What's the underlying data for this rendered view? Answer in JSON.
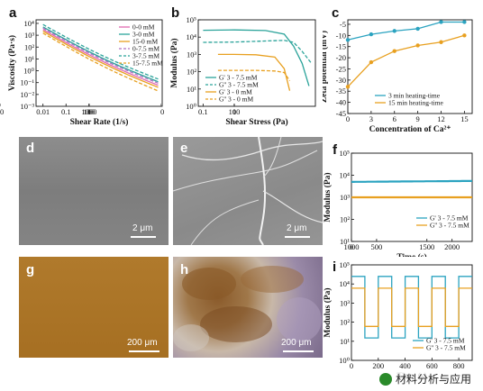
{
  "panels": {
    "a": {
      "label": "a"
    },
    "b": {
      "label": "b"
    },
    "c": {
      "label": "c"
    },
    "d": {
      "label": "d",
      "scale": "2 μm"
    },
    "e": {
      "label": "e",
      "scale": "2 μm"
    },
    "f": {
      "label": "f"
    },
    "g": {
      "label": "g",
      "scale": "200 μm"
    },
    "h": {
      "label": "h",
      "scale": "200 μm"
    },
    "i": {
      "label": "i"
    }
  },
  "watermark": {
    "text": "材料分析与应用",
    "icon": "wechat-icon"
  },
  "chart_data": [
    {
      "id": "a",
      "type": "line",
      "xlabel": "Shear Rate (1/s)",
      "ylabel": "Viscosity (Pa·s)",
      "xscale": "log",
      "yscale": "log",
      "xticks": [
        "0.01",
        "0.1",
        "1",
        "10",
        "100",
        "1000"
      ],
      "yticks": [
        "10⁻³",
        "10⁻²",
        "10⁻¹",
        "10⁰",
        "10¹",
        "10²",
        "10³",
        "10⁴"
      ],
      "xlim": [
        0.005,
        1500
      ],
      "ylim": [
        0.001,
        20000
      ],
      "series": [
        {
          "name": "0-0 mM",
          "color": "#e06ab0",
          "dash": false,
          "x": [
            0.01,
            1000
          ],
          "y": [
            3000,
            0.06
          ]
        },
        {
          "name": "3-0 mM",
          "color": "#2ba39a",
          "dash": false,
          "x": [
            0.01,
            1000
          ],
          "y": [
            5000,
            0.12
          ]
        },
        {
          "name": "15-0 mM",
          "color": "#e8a020",
          "dash": false,
          "x": [
            0.01,
            1000
          ],
          "y": [
            2200,
            0.04
          ]
        },
        {
          "name": "0-7.5 mM",
          "color": "#b070c0",
          "dash": true,
          "x": [
            0.01,
            1000
          ],
          "y": [
            4000,
            0.09
          ]
        },
        {
          "name": "3-7.5 mM",
          "color": "#2ba39a",
          "dash": true,
          "x": [
            0.01,
            1000
          ],
          "y": [
            8000,
            0.2
          ]
        },
        {
          "name": "15-7.5 mM",
          "color": "#e8a020",
          "dash": true,
          "x": [
            0.01,
            1000
          ],
          "y": [
            1500,
            0.02
          ]
        }
      ]
    },
    {
      "id": "b",
      "type": "line",
      "xlabel": "Shear Stress (Pa)",
      "ylabel": "Modulus (Pa)",
      "xscale": "log",
      "yscale": "log",
      "xticks": [
        "0.1",
        "1",
        "10",
        "100"
      ],
      "yticks": [
        "10⁰",
        "10¹",
        "10²",
        "10³",
        "10⁴",
        "10⁵"
      ],
      "xlim": [
        0.07,
        400
      ],
      "ylim": [
        1,
        100000
      ],
      "series": [
        {
          "name": "G' 3 - 7.5 mM",
          "color": "#2ba39a",
          "dash": false,
          "x": [
            0.1,
            1,
            10,
            40,
            80,
            150,
            250
          ],
          "y": [
            25000,
            26000,
            24000,
            15000,
            3000,
            300,
            15
          ]
        },
        {
          "name": "G'' 3 - 7.5 mM",
          "color": "#2ba39a",
          "dash": true,
          "x": [
            0.1,
            1,
            10,
            40,
            80,
            150,
            300
          ],
          "y": [
            5000,
            5200,
            6000,
            6500,
            5000,
            1500,
            300
          ]
        },
        {
          "name": "G' 3 - 0 mM",
          "color": "#e8a020",
          "dash": false,
          "x": [
            0.3,
            1,
            5,
            20,
            40,
            60
          ],
          "y": [
            1000,
            1000,
            950,
            700,
            150,
            8
          ]
        },
        {
          "name": "G'' 3 - 0 mM",
          "color": "#e8a020",
          "dash": true,
          "x": [
            0.3,
            1,
            5,
            20,
            40,
            60
          ],
          "y": [
            120,
            120,
            120,
            110,
            90,
            30
          ]
        }
      ]
    },
    {
      "id": "c",
      "type": "line",
      "xlabel": "Concentration of Ca²⁺",
      "ylabel": "Zeta potential (mV)",
      "xticks": [
        "0",
        "3",
        "6",
        "9",
        "12",
        "15"
      ],
      "yticks": [
        "-45",
        "-40",
        "-35",
        "-30",
        "-25",
        "-20",
        "-15",
        "-10",
        "-5"
      ],
      "xlim": [
        0,
        16
      ],
      "ylim": [
        -45,
        -3
      ],
      "series": [
        {
          "name": "3 min heating-time",
          "color": "#2ba3c0",
          "x": [
            0,
            3,
            6,
            9,
            12,
            15
          ],
          "y": [
            -12,
            -9.5,
            -8,
            -7,
            -4,
            -4
          ]
        },
        {
          "name": "15 min heating-time",
          "color": "#e8a020",
          "x": [
            0,
            3,
            6,
            9,
            12,
            15
          ],
          "y": [
            -33,
            -22,
            -17,
            -14.5,
            -13,
            -10
          ]
        }
      ]
    },
    {
      "id": "f",
      "type": "line",
      "xlabel": "Time (s)",
      "ylabel": "Modulus (Pa)",
      "xscale": "linear",
      "yscale": "log",
      "xticks": [
        "0",
        "500",
        "1000",
        "1500",
        "2000"
      ],
      "yticks": [
        "10¹",
        "10²",
        "10³",
        "10⁴",
        "10⁵"
      ],
      "xlim": [
        0,
        2400
      ],
      "ylim": [
        10,
        100000
      ],
      "series": [
        {
          "name": "G' 3 - 7.5 mM",
          "color": "#2ba3c0",
          "x": [
            0,
            2400
          ],
          "y": [
            5000,
            5500
          ]
        },
        {
          "name": "G'' 3 - 7.5 mM",
          "color": "#e8a020",
          "x": [
            0,
            2400
          ],
          "y": [
            1000,
            1000
          ]
        }
      ]
    },
    {
      "id": "i",
      "type": "line",
      "xlabel": "Time (s)",
      "ylabel": "Modulus (Pa)",
      "xscale": "linear",
      "yscale": "log",
      "xticks": [
        "0",
        "200",
        "400",
        "600",
        "800"
      ],
      "yticks": [
        "10⁰",
        "10¹",
        "10²",
        "10³",
        "10⁴",
        "10⁵"
      ],
      "xlim": [
        0,
        900
      ],
      "ylim": [
        1,
        100000
      ],
      "series": [
        {
          "name": "G' 3 - 7.5 mM",
          "color": "#2ba3c0",
          "x": [
            0,
            100,
            100,
            200,
            200,
            300,
            300,
            400,
            400,
            500,
            500,
            600,
            600,
            700,
            700,
            800,
            800,
            900
          ],
          "y": [
            25000,
            25000,
            15,
            15,
            25000,
            25000,
            15,
            15,
            25000,
            25000,
            15,
            15,
            25000,
            25000,
            15,
            15,
            25000,
            25000
          ]
        },
        {
          "name": "G'' 3 - 7.5 mM",
          "color": "#e8a020",
          "x": [
            0,
            100,
            100,
            200,
            200,
            300,
            300,
            400,
            400,
            500,
            500,
            600,
            600,
            700,
            700,
            800,
            800,
            900
          ],
          "y": [
            6000,
            6000,
            60,
            60,
            6000,
            6000,
            60,
            60,
            6000,
            6000,
            60,
            60,
            6000,
            6000,
            60,
            60,
            6000,
            6000
          ]
        }
      ]
    }
  ]
}
